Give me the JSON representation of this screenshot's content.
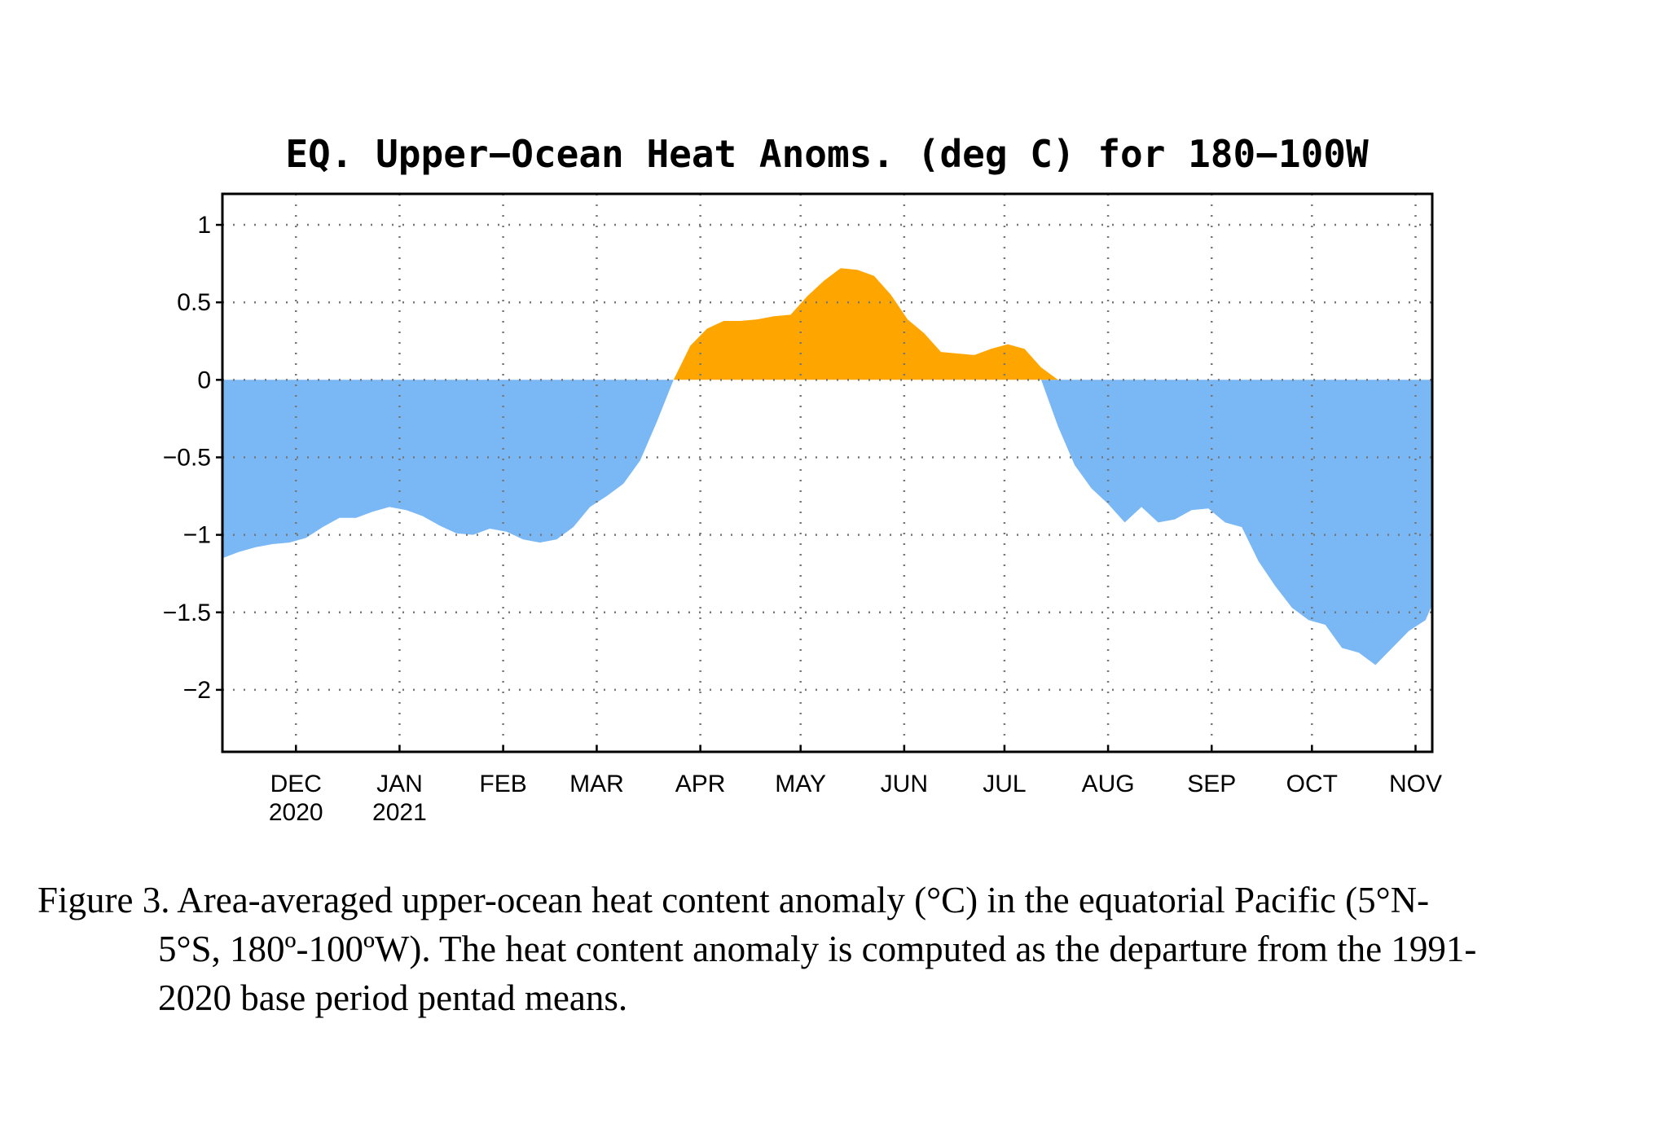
{
  "chart_data": {
    "type": "area",
    "title": "EQ. Upper−Ocean Heat Anoms. (deg C) for 180−100W",
    "xlabel": "",
    "ylabel": "",
    "ylim": [
      -2.4,
      1.2
    ],
    "yticks": [
      1,
      0.5,
      0,
      -0.5,
      -1,
      -1.5,
      -2
    ],
    "ytick_labels": [
      "1",
      "0.5",
      "0",
      "−0.5",
      "−1",
      "−1.5",
      "−2"
    ],
    "xlim": [
      "2020-11-09",
      "2021-11-06"
    ],
    "xticks": [
      {
        "date": "2020-12-01",
        "label": "DEC",
        "year": "2020"
      },
      {
        "date": "2021-01-01",
        "label": "JAN",
        "year": "2021"
      },
      {
        "date": "2021-02-01",
        "label": "FEB",
        "year": ""
      },
      {
        "date": "2021-03-01",
        "label": "MAR",
        "year": ""
      },
      {
        "date": "2021-04-01",
        "label": "APR",
        "year": ""
      },
      {
        "date": "2021-05-01",
        "label": "MAY",
        "year": ""
      },
      {
        "date": "2021-06-01",
        "label": "JUN",
        "year": ""
      },
      {
        "date": "2021-07-01",
        "label": "JUL",
        "year": ""
      },
      {
        "date": "2021-08-01",
        "label": "AUG",
        "year": ""
      },
      {
        "date": "2021-09-01",
        "label": "SEP",
        "year": ""
      },
      {
        "date": "2021-10-01",
        "label": "OCT",
        "year": ""
      },
      {
        "date": "2021-11-01",
        "label": "NOV",
        "year": ""
      }
    ],
    "grid": true,
    "grid_style": "dotted",
    "positive_color": "#ffa500",
    "negative_color": "#7ab8f5",
    "series": [
      {
        "x": [
          "2020-11-09",
          "2020-11-14",
          "2020-11-19",
          "2020-11-24",
          "2020-11-29",
          "2020-12-04",
          "2020-12-09",
          "2020-12-14",
          "2020-12-19",
          "2020-12-24",
          "2020-12-29",
          "2021-01-03",
          "2021-01-08",
          "2021-01-13",
          "2021-01-18",
          "2021-01-23",
          "2021-01-28",
          "2021-02-02",
          "2021-02-07",
          "2021-02-12",
          "2021-02-17",
          "2021-02-22",
          "2021-02-27",
          "2021-03-04",
          "2021-03-09",
          "2021-03-14",
          "2021-03-19",
          "2021-03-24",
          "2021-03-29",
          "2021-04-03",
          "2021-04-08",
          "2021-04-13",
          "2021-04-18",
          "2021-04-23",
          "2021-04-28",
          "2021-05-03",
          "2021-05-08",
          "2021-05-13",
          "2021-05-18",
          "2021-05-23",
          "2021-05-28",
          "2021-06-02",
          "2021-06-07",
          "2021-06-12",
          "2021-06-17",
          "2021-06-22",
          "2021-06-27",
          "2021-07-02",
          "2021-07-07",
          "2021-07-12",
          "2021-07-17",
          "2021-07-22",
          "2021-07-27",
          "2021-08-01",
          "2021-08-06",
          "2021-08-11",
          "2021-08-16",
          "2021-08-21",
          "2021-08-26",
          "2021-08-31",
          "2021-09-05",
          "2021-09-10",
          "2021-09-15",
          "2021-09-20",
          "2021-09-25",
          "2021-09-30",
          "2021-10-05",
          "2021-10-10",
          "2021-10-15",
          "2021-10-20",
          "2021-10-25",
          "2021-10-30",
          "2021-11-04",
          "2021-11-06"
        ],
        "values": [
          -1.15,
          -1.11,
          -1.08,
          -1.06,
          -1.05,
          -1.02,
          -0.95,
          -0.89,
          -0.89,
          -0.85,
          -0.82,
          -0.84,
          -0.88,
          -0.94,
          -0.99,
          -1.0,
          -0.96,
          -0.98,
          -1.03,
          -1.05,
          -1.03,
          -0.95,
          -0.82,
          -0.75,
          -0.67,
          -0.52,
          -0.27,
          0.0,
          0.22,
          0.33,
          0.38,
          0.38,
          0.39,
          0.41,
          0.42,
          0.54,
          0.64,
          0.72,
          0.71,
          0.67,
          0.55,
          0.39,
          0.3,
          0.18,
          0.17,
          0.16,
          0.2,
          0.23,
          0.2,
          0.08,
          -0.3,
          -0.55,
          -0.7,
          -0.8,
          -0.92,
          -0.82,
          -0.92,
          -0.9,
          -0.84,
          -0.83,
          -0.92,
          -0.95,
          -1.17,
          -1.33,
          -1.47,
          -1.55,
          -1.58,
          -1.73,
          -1.76,
          -1.84,
          -1.73,
          -1.62,
          -1.55,
          -1.45
        ]
      }
    ]
  },
  "caption": {
    "line1": "Figure 3. Area-averaged upper-ocean heat content anomaly (°C) in the equatorial Pacific (5°N-",
    "line2": "5°S, 180º-100ºW). The heat content anomaly is computed as the departure from the 1991-",
    "line3": "2020 base period pentad means."
  }
}
